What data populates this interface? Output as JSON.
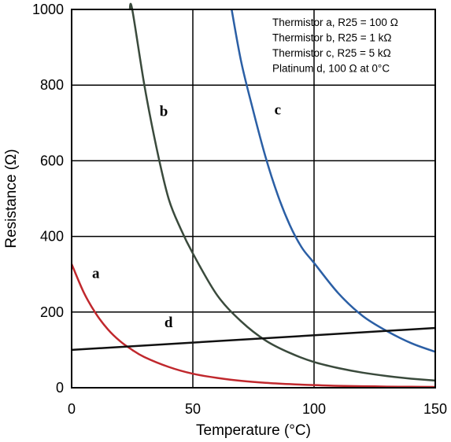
{
  "chart_data": {
    "type": "line",
    "xlabel": "Temperature  (°C)",
    "ylabel": "Resistance (Ω)",
    "xlim": [
      0,
      150
    ],
    "ylim": [
      0,
      1000
    ],
    "xticks": [
      0,
      50,
      100,
      150
    ],
    "yticks": [
      0,
      200,
      400,
      600,
      800,
      1000
    ],
    "grid": true,
    "legend": {
      "placement": "top-right",
      "entries": [
        "Thermistor a, R25 = 100 Ω",
        "Thermistor b, R25 = 1 kΩ",
        "Thermistor c, R25 = 5 kΩ",
        "Platinum d, 100 Ω at 0°C"
      ]
    },
    "series": [
      {
        "label": "a",
        "color": "#c0282d",
        "x": [
          0,
          5,
          10,
          15,
          20,
          25,
          30,
          40,
          50,
          60,
          70,
          80,
          90,
          100,
          110,
          120,
          130,
          140,
          150
        ],
        "y": [
          327,
          252,
          196,
          154,
          123,
          100,
          81,
          55,
          37,
          26,
          18,
          13,
          9.5,
          7,
          5,
          4,
          3,
          2.5,
          2
        ]
      },
      {
        "label": "b",
        "color": "#3a4a3c",
        "x": [
          24,
          25,
          30,
          35,
          40,
          45,
          50,
          60,
          70,
          80,
          90,
          100,
          110,
          120,
          130,
          140,
          150
        ],
        "y": [
          1000,
          1000,
          800,
          635,
          500,
          420,
          355,
          245,
          175,
          125,
          92,
          68,
          52,
          40,
          31,
          24,
          19
        ]
      },
      {
        "label": "c",
        "color": "#2b5fa5",
        "x": [
          66,
          70,
          75,
          80,
          85,
          90,
          95,
          100,
          110,
          120,
          130,
          140,
          150
        ],
        "y": [
          1000,
          860,
          730,
          610,
          510,
          430,
          370,
          330,
          250,
          190,
          150,
          118,
          95
        ]
      },
      {
        "label": "d",
        "color": "#111111",
        "x": [
          0,
          150
        ],
        "y": [
          100,
          158
        ]
      }
    ],
    "curve_labels": [
      {
        "text": "a",
        "x": 10,
        "y": 290
      },
      {
        "text": "b",
        "x": 38,
        "y": 718
      },
      {
        "text": "c",
        "x": 85,
        "y": 722
      },
      {
        "text": "d",
        "x": 40,
        "y": 160
      }
    ]
  }
}
